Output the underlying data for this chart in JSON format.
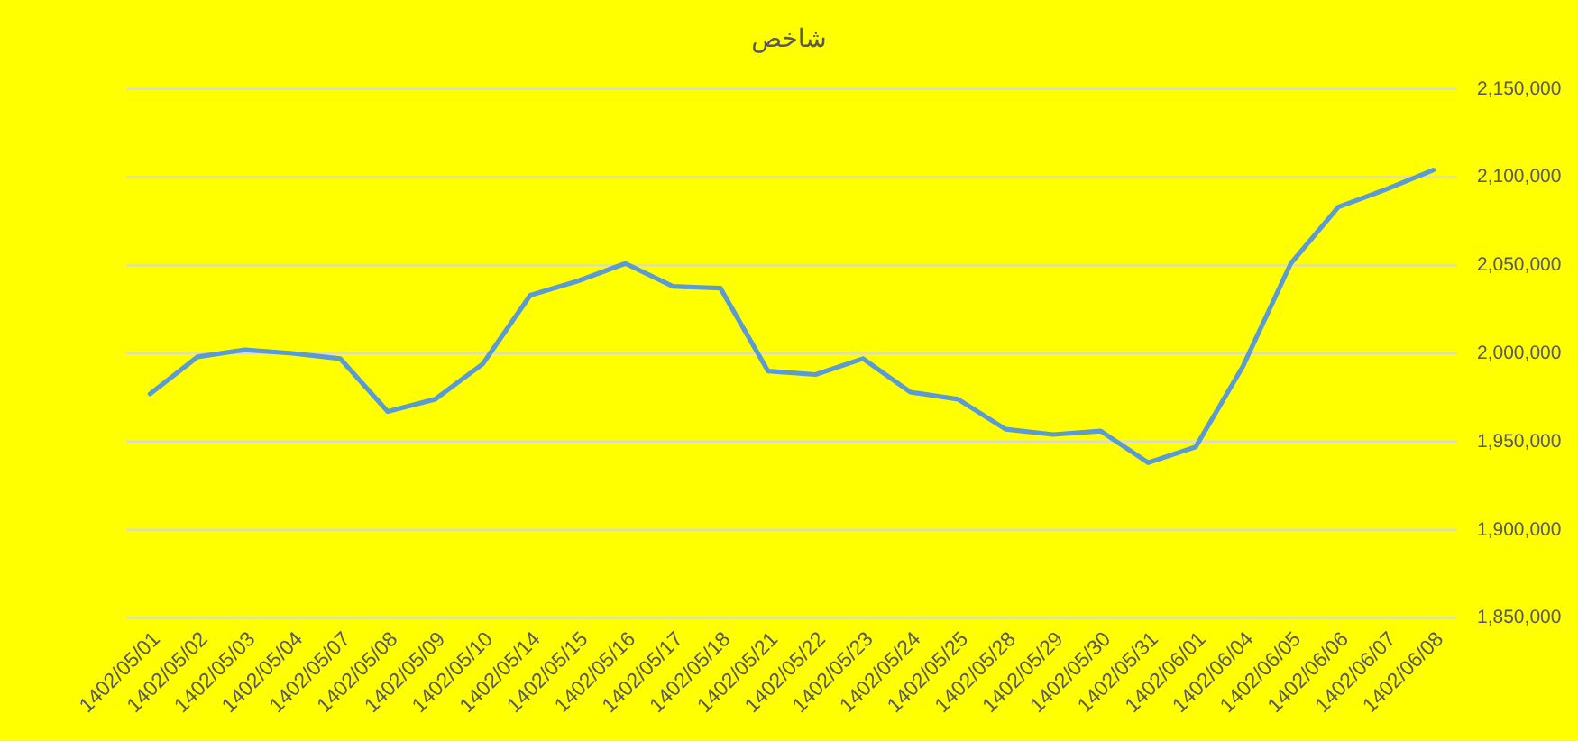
{
  "chart_data": {
    "type": "line",
    "title": "شاخص",
    "categories": [
      "1402/05/01",
      "1402/05/02",
      "1402/05/03",
      "1402/05/04",
      "1402/05/07",
      "1402/05/08",
      "1402/05/09",
      "1402/05/10",
      "1402/05/14",
      "1402/05/15",
      "1402/05/16",
      "1402/05/17",
      "1402/05/18",
      "1402/05/21",
      "1402/05/22",
      "1402/05/23",
      "1402/05/24",
      "1402/05/25",
      "1402/05/28",
      "1402/05/29",
      "1402/05/30",
      "1402/05/31",
      "1402/06/01",
      "1402/06/04",
      "1402/06/05",
      "1402/06/06",
      "1402/06/07",
      "1402/06/08"
    ],
    "series": [
      {
        "color": "#5b9bd5",
        "values": [
          1977000,
          1998000,
          2002000,
          2000000,
          1997000,
          1967000,
          1974000,
          1994000,
          2033000,
          2041000,
          2051000,
          2038000,
          2037000,
          1990000,
          1988000,
          1997000,
          1978000,
          1974000,
          1957000,
          1954000,
          1956000,
          1938000,
          1947000,
          1993000,
          2051000,
          2083000,
          2093000,
          2104000
        ]
      }
    ],
    "ylim": [
      1850000,
      2150000
    ],
    "yticks": [
      {
        "value": 1850000,
        "label": "1,850,000"
      },
      {
        "value": 1900000,
        "label": "1,900,000"
      },
      {
        "value": 1950000,
        "label": "1,950,000"
      },
      {
        "value": 2000000,
        "label": "2,000,000"
      },
      {
        "value": 2050000,
        "label": "2,050,000"
      },
      {
        "value": 2100000,
        "label": "2,100,000"
      },
      {
        "value": 2150000,
        "label": "2,150,000"
      }
    ],
    "grid": "y",
    "marker": "none",
    "line_style": "solid"
  }
}
